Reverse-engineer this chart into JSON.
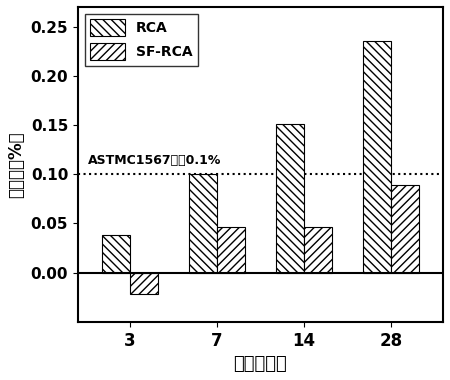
{
  "categories": [
    "3",
    "7",
    "14",
    "28"
  ],
  "rca_values": [
    0.038,
    0.1,
    0.151,
    0.235
  ],
  "sf_rca_values": [
    -0.022,
    0.046,
    0.046,
    0.089
  ],
  "ylim": [
    -0.05,
    0.27
  ],
  "yticks": [
    0.0,
    0.05,
    0.1,
    0.15,
    0.2,
    0.25
  ],
  "hline_y": 0.1,
  "hline_label": "ASTMC1567限倄0.1%",
  "xlabel": "龄期（天）",
  "ylabel": "膨胀率（%）",
  "legend_labels": [
    "RCA",
    "SF-RCA"
  ],
  "bar_width": 0.32,
  "rca_hatch": "\\\\\\\\",
  "sf_rca_hatch": "////",
  "bar_color": "white",
  "bar_edgecolor": "black"
}
